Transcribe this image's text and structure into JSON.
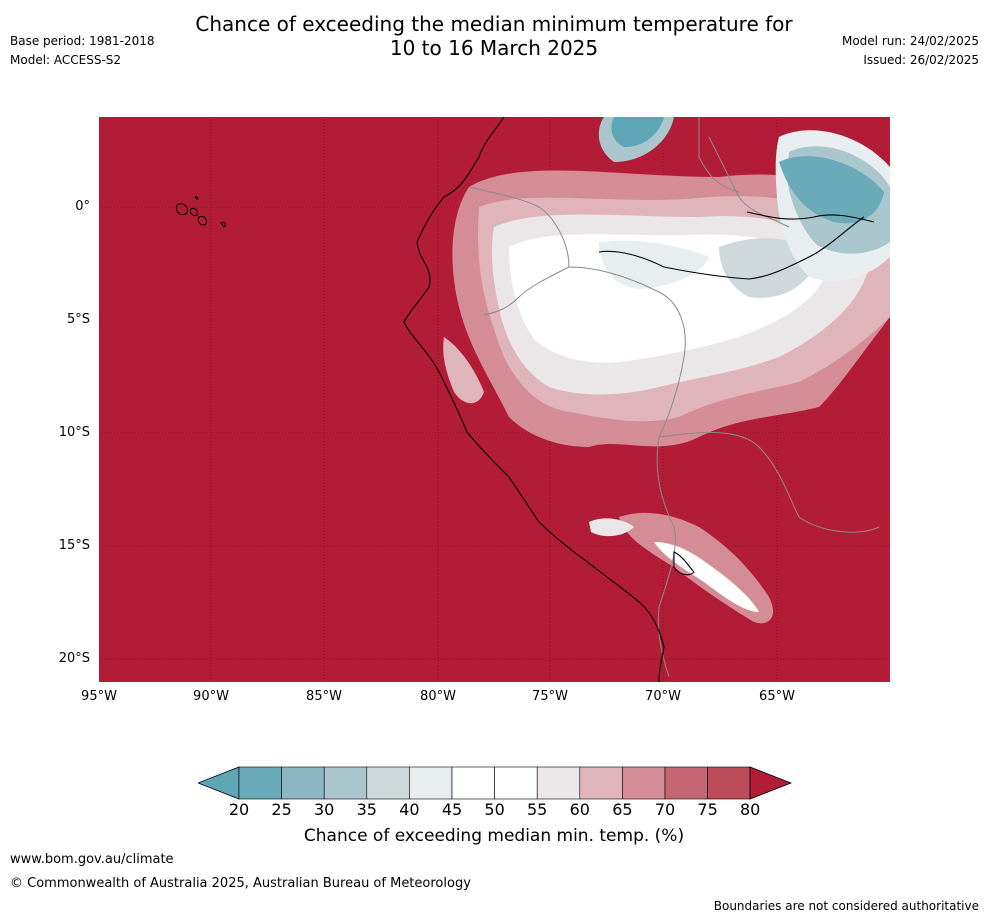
{
  "header": {
    "title_line1": "Chance of exceeding the median minimum temperature for",
    "title_line2": "10 to 16 March 2025",
    "base_period": "Base period: 1981-2018",
    "model": "Model: ACCESS-S2",
    "model_run": "Model run: 24/02/2025",
    "issued": "Issued: 26/02/2025"
  },
  "map": {
    "region": "western South America",
    "lat_labels": [
      "0°",
      "5°S",
      "10°S",
      "15°S",
      "20°S"
    ],
    "lon_labels": [
      "95°W",
      "90°W",
      "85°W",
      "80°W",
      "75°W",
      "70°W",
      "65°W"
    ],
    "background_color": "#b31c37",
    "coastline_color": "#000000",
    "border_color": "#888888"
  },
  "colorbar": {
    "ticks": [
      "20",
      "25",
      "30",
      "35",
      "40",
      "45",
      "50",
      "55",
      "60",
      "65",
      "70",
      "75",
      "80"
    ],
    "colors": [
      "#5ea5b5",
      "#6aaab9",
      "#8bb6c2",
      "#a9c6cc",
      "#cfd8db",
      "#e8eef0",
      "#ffffff",
      "#ffffff",
      "#ebe7e8",
      "#e0b4bb",
      "#d48d96",
      "#c56673",
      "#bc4c5b",
      "#b31c37"
    ],
    "label": "Chance of exceeding median min. temp. (%)"
  },
  "footer": {
    "url": "www.bom.gov.au/climate",
    "copyright": "© Commonwealth of Australia 2025, Australian Bureau of Meteorology",
    "note": "Boundaries are not considered authoritative"
  }
}
